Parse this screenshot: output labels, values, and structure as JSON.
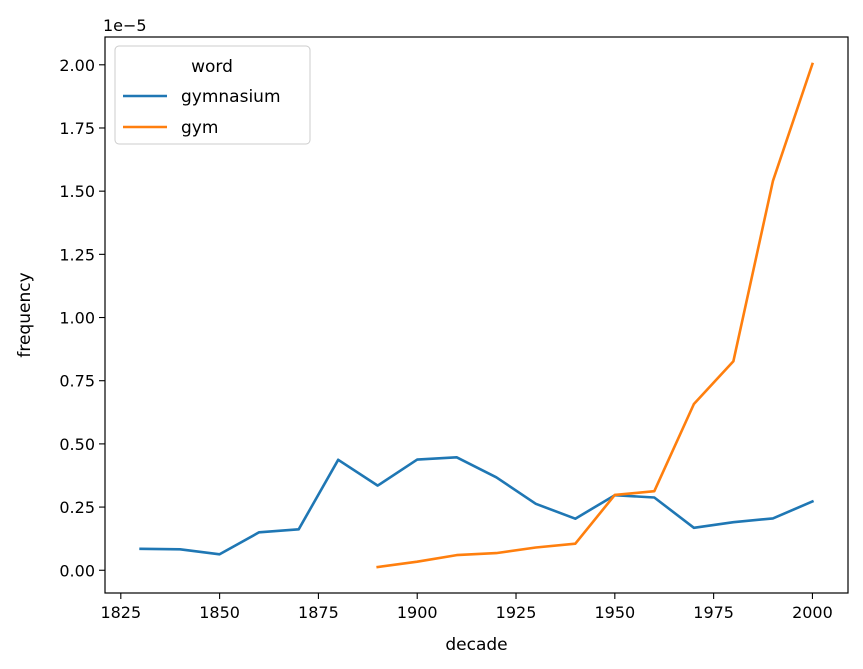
{
  "chart_data": {
    "type": "line",
    "title": "",
    "xlabel": "decade",
    "ylabel": "frequency",
    "offset_label": "1e−5",
    "xlim": [
      1821,
      2009
    ],
    "ylim": [
      -0.09,
      2.11
    ],
    "x_ticks": [
      1825,
      1850,
      1875,
      1900,
      1925,
      1950,
      1975,
      2000
    ],
    "y_ticks": [
      0.0,
      0.25,
      0.5,
      0.75,
      1.0,
      1.25,
      1.5,
      1.75,
      2.0
    ],
    "y_tick_labels": [
      "0.00",
      "0.25",
      "0.50",
      "0.75",
      "1.00",
      "1.25",
      "1.50",
      "1.75",
      "2.00"
    ],
    "grid": false,
    "legend": {
      "title": "word",
      "position": "top-left",
      "entries": [
        "gymnasium",
        "gym"
      ]
    },
    "series": [
      {
        "name": "gymnasium",
        "color": "#1f77b4",
        "x": [
          1830,
          1840,
          1850,
          1860,
          1870,
          1880,
          1890,
          1900,
          1910,
          1920,
          1930,
          1940,
          1950,
          1960,
          1970,
          1980,
          1990,
          2000
        ],
        "values": [
          0.085,
          0.083,
          0.063,
          0.15,
          0.162,
          0.437,
          0.335,
          0.438,
          0.447,
          0.368,
          0.263,
          0.204,
          0.297,
          0.288,
          0.168,
          0.19,
          0.205,
          0.272
        ]
      },
      {
        "name": "gym",
        "color": "#ff7f0e",
        "x": [
          1890,
          1900,
          1910,
          1920,
          1930,
          1940,
          1950,
          1960,
          1970,
          1980,
          1990,
          2000
        ],
        "values": [
          0.013,
          0.034,
          0.06,
          0.068,
          0.09,
          0.105,
          0.298,
          0.313,
          0.658,
          0.827,
          1.54,
          2.003
        ]
      }
    ]
  }
}
